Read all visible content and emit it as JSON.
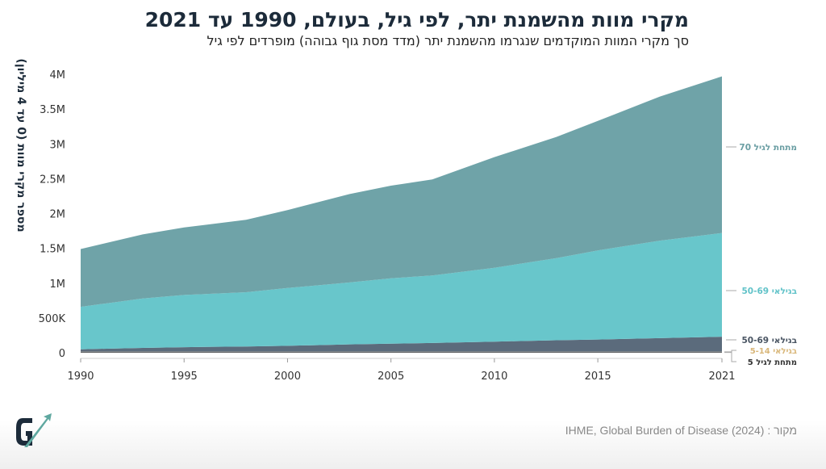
{
  "title": "מקרי מוות מהשמנת יתר, לפי גיל, בעולם, 1990 עד 2021",
  "subtitle": "סך מקרי המוות המוקדמים שנגרמו מהשמנת יתר (מדד מסת גוף גבוהה) מופרדים לפי גיל",
  "source": "מקור : IHME, Global Burden of Disease (2024)",
  "logo_text": "G",
  "chart_data": {
    "type": "area",
    "stacked": true,
    "title": "מקרי מוות מהשמנת יתר, לפי גיל, בעולם, 1990 עד 2021",
    "ylabel": "מספר מקרי מוות (0 עד 4 מיליון)",
    "xlabel": "",
    "xlim": [
      1990,
      2021
    ],
    "ylim": [
      0,
      4000000
    ],
    "x_ticks": [
      "1990",
      "1995",
      "2000",
      "2005",
      "2010",
      "2015",
      "2021"
    ],
    "y_ticks": [
      "0",
      "500K",
      "1M",
      "1.5M",
      "2M",
      "2.5M",
      "3M",
      "3.5M",
      "4M"
    ],
    "grid": false,
    "legend": "right, inline labels",
    "x": [
      1990,
      1993,
      1995,
      1998,
      2000,
      2003,
      2005,
      2007,
      2010,
      2013,
      2015,
      2018,
      2021
    ],
    "series": [
      {
        "name": "מתחת לגיל 5",
        "color": "#3b4350",
        "label_color": "#333333",
        "values": [
          10000,
          10000,
          10000,
          10000,
          10000,
          10000,
          10000,
          10000,
          10000,
          10000,
          10000,
          10000,
          10000
        ]
      },
      {
        "name": "בגילאי 5-14",
        "color": "#e0c080",
        "label_color": "#d9b77a",
        "values": [
          5000,
          5000,
          5000,
          5000,
          5000,
          5000,
          5000,
          5000,
          5000,
          5000,
          5000,
          5000,
          5000
        ]
      },
      {
        "name": "בגילאי 50-69",
        "color": "#5b6b7c",
        "label_color": "#4a5563",
        "values": [
          35000,
          55000,
          65000,
          75000,
          85000,
          105000,
          115000,
          125000,
          145000,
          165000,
          175000,
          195000,
          215000
        ]
      },
      {
        "name": "בגילאי 50-69",
        "color": "#68c6cb",
        "label_color": "#62c3c9",
        "values": [
          610000,
          710000,
          750000,
          780000,
          830000,
          890000,
          940000,
          970000,
          1060000,
          1180000,
          1280000,
          1400000,
          1490000
        ]
      },
      {
        "name": "מתחת לגיל 70",
        "color": "#6fa3a8",
        "label_color": "#6a9ea3",
        "values": [
          830000,
          920000,
          970000,
          1040000,
          1120000,
          1270000,
          1330000,
          1380000,
          1590000,
          1740000,
          1860000,
          2070000,
          2250000
        ]
      }
    ]
  }
}
